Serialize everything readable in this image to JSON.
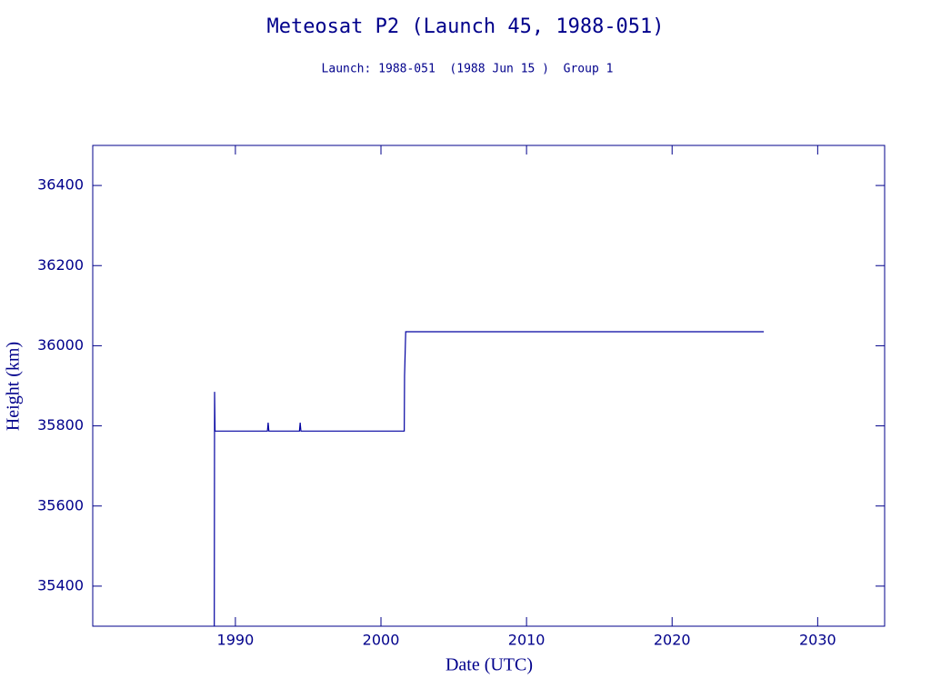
{
  "chart_data": {
    "type": "line",
    "title": "Meteosat P2 (Launch 45, 1988-051)",
    "subtitle": "Launch: 1988-051  (1988 Jun 15 )  Group 1",
    "x_label": "Date (UTC)",
    "y_label": "Height (km)",
    "xlim": [
      1980.2,
      2034.6
    ],
    "ylim": [
      35300,
      36500
    ],
    "xticks": [
      1990,
      2000,
      2010,
      2020,
      2030
    ],
    "yticks": [
      35400,
      35600,
      35800,
      36000,
      36200,
      36400
    ],
    "grid": false,
    "series": [
      {
        "name": "Height",
        "color": "#0000a0",
        "x": [
          1988.55,
          1988.57,
          1988.6,
          1992.2,
          1992.25,
          1992.3,
          1994.4,
          1994.45,
          1994.5,
          2001.6,
          2001.62,
          2001.7,
          2026.3
        ],
        "values": [
          35300,
          35885,
          35787,
          35787,
          35808,
          35787,
          35787,
          35808,
          35787,
          35787,
          35925,
          36035,
          36035
        ]
      }
    ]
  }
}
